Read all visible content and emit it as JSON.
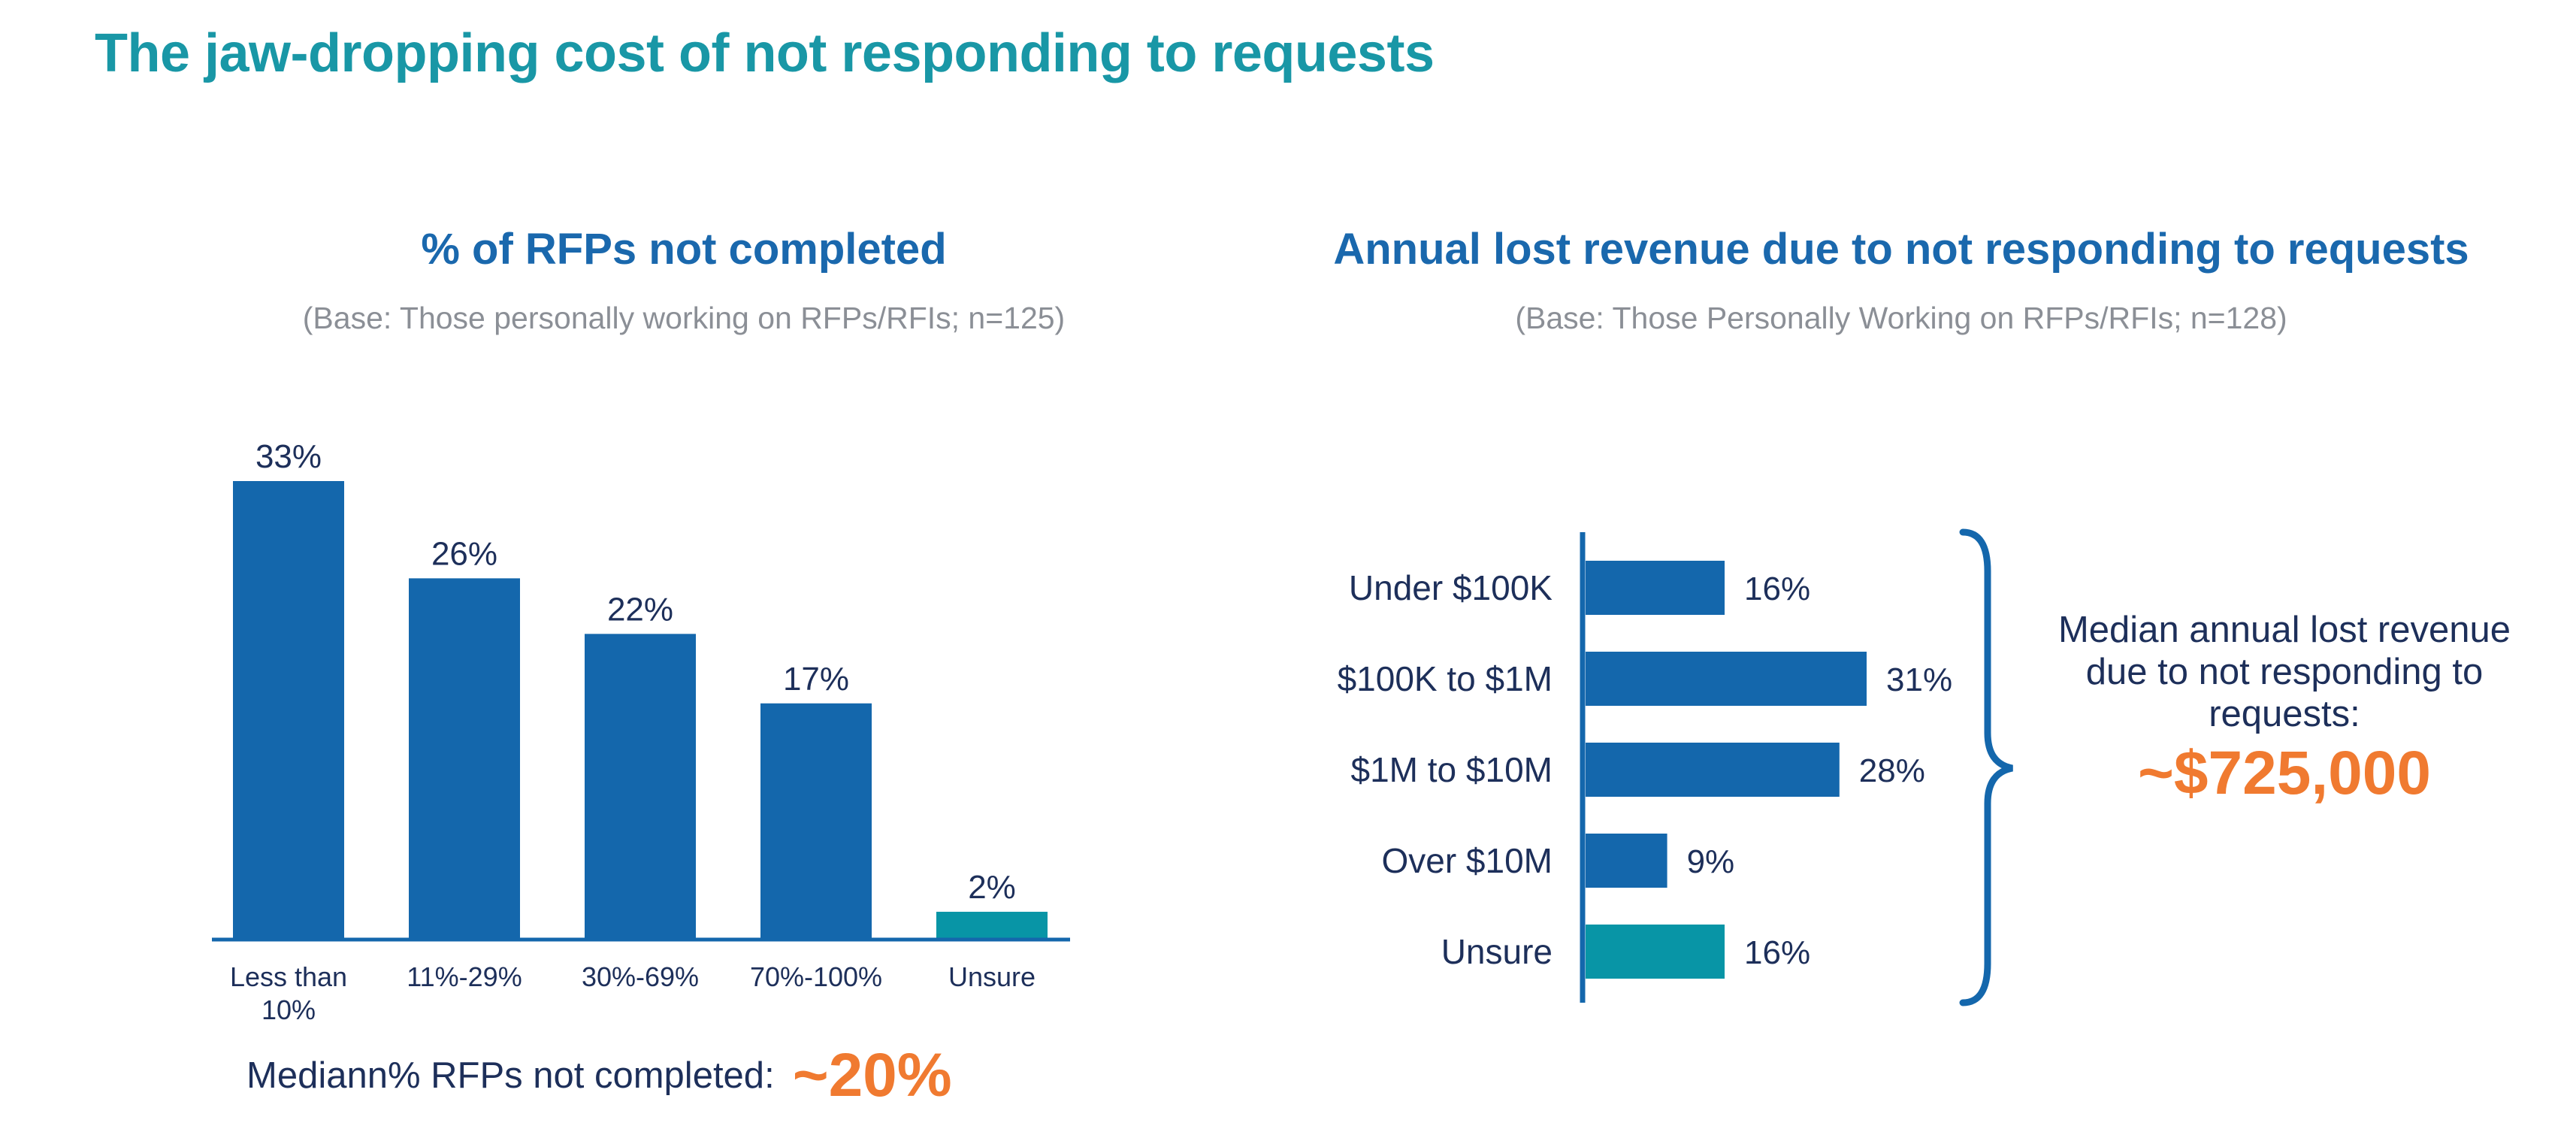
{
  "title": "The jaw-dropping cost of not responding to requests",
  "colors": {
    "title": "#1997a6",
    "chart_title": "#1a68ad",
    "bar": "#1467ac",
    "bar_alt": "#0895a6",
    "text": "#1d2f5a",
    "accent": "#f07a30",
    "base": "#8b8f96"
  },
  "chart_data": [
    {
      "type": "bar",
      "title": "% of RFPs not completed",
      "subtitle": "(Base: Those personally working on RFPs/RFIs; n=125)",
      "categories": [
        "Less than 10%",
        "11%-29%",
        "30%-69%",
        "70%-100%",
        "Unsure"
      ],
      "values": [
        33,
        26,
        22,
        17,
        2
      ],
      "labels": [
        "33%",
        "26%",
        "22%",
        "17%",
        "2%"
      ],
      "highlight": [
        false,
        false,
        false,
        false,
        true
      ],
      "ylim": [
        0,
        35
      ]
    },
    {
      "type": "bar",
      "orientation": "horizontal",
      "title": "Annual lost revenue due to not responding to requests",
      "subtitle": "(Base: Those Personally Working on RFPs/RFIs; n=128)",
      "categories": [
        "Under $100K",
        "$100K to $1M",
        "$1M to $10M",
        "Over $10M",
        "Unsure"
      ],
      "values": [
        16,
        31,
        28,
        9,
        16
      ],
      "labels": [
        "16%",
        "31%",
        "28%",
        "9%",
        "16%"
      ],
      "highlight": [
        false,
        false,
        false,
        false,
        true
      ],
      "xlim": [
        0,
        35
      ]
    }
  ],
  "left_note": {
    "label": "Mediann% RFPs not completed:",
    "value": "~20%"
  },
  "right_note": {
    "label": "Median annual lost revenue due to not responding to requests:",
    "value": "~$725,000"
  }
}
